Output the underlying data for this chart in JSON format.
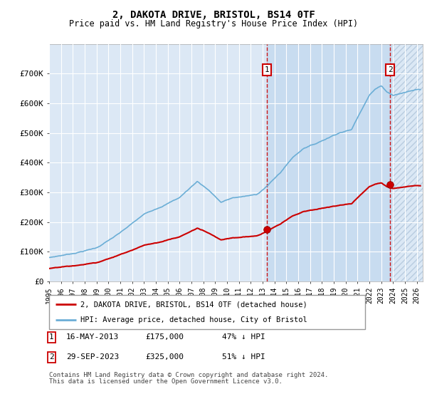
{
  "title": "2, DAKOTA DRIVE, BRISTOL, BS14 0TF",
  "subtitle": "Price paid vs. HM Land Registry's House Price Index (HPI)",
  "hpi_label": "HPI: Average price, detached house, City of Bristol",
  "property_label": "2, DAKOTA DRIVE, BRISTOL, BS14 0TF (detached house)",
  "footer1": "Contains HM Land Registry data © Crown copyright and database right 2024.",
  "footer2": "This data is licensed under the Open Government Licence v3.0.",
  "transaction1_date": "16-MAY-2013",
  "transaction1_price": "£175,000",
  "transaction1_hpi": "47% ↓ HPI",
  "transaction2_date": "29-SEP-2023",
  "transaction2_price": "£325,000",
  "transaction2_hpi": "51% ↓ HPI",
  "t1_year": 2013.37,
  "t2_year": 2023.75,
  "t1_price": 175000,
  "t2_price": 325000,
  "hatch_start": 2024.0,
  "xlim": [
    1995,
    2026.5
  ],
  "ylim": [
    0,
    800000
  ],
  "yticks": [
    0,
    100000,
    200000,
    300000,
    400000,
    500000,
    600000,
    700000
  ],
  "hpi_color": "#6baed6",
  "property_color": "#cc0000",
  "vline_color": "#cc0000",
  "bg_color": "#dce8f5",
  "bg_highlight": "#c8dcf0",
  "grid_color": "white",
  "hatch_color": "#b8cce0"
}
